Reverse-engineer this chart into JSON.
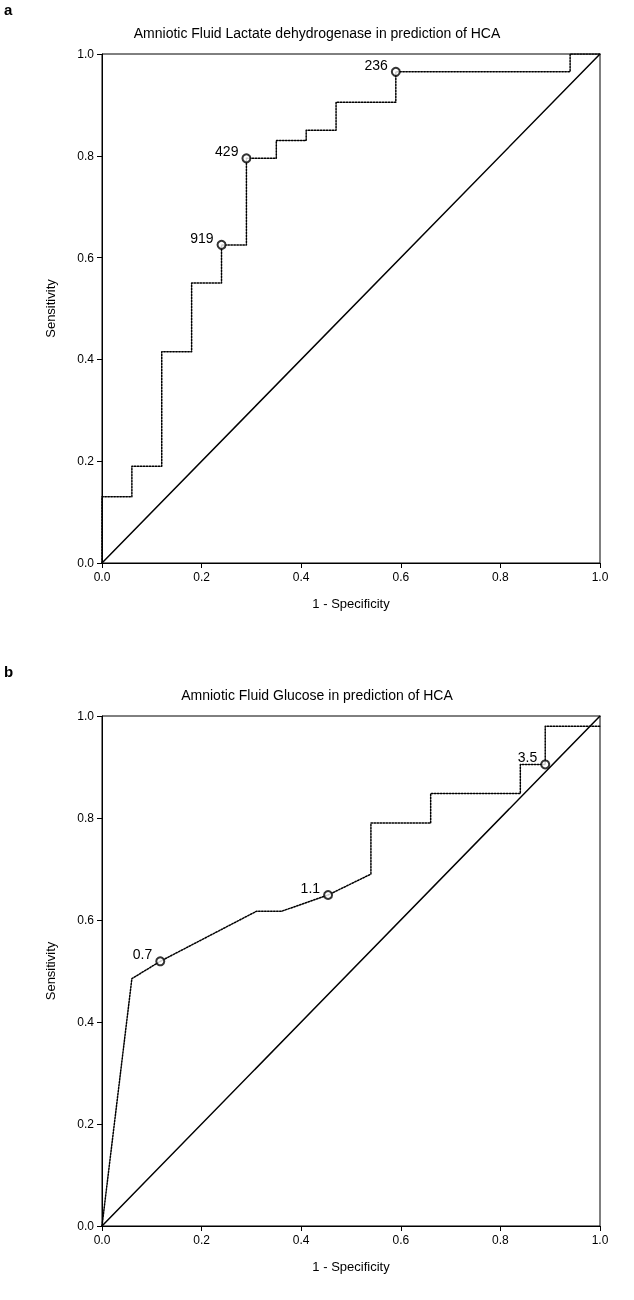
{
  "chart_data": [
    {
      "type": "line",
      "title": "Amniotic Fluid Lactate dehydrogenase in prediction of HCA",
      "xlabel": "1 - Specificity",
      "ylabel": "Sensitivity",
      "series": [
        {
          "type": "line",
          "color": "#000000",
          "line_style": "dotted",
          "marker": "none",
          "x": [
            0,
            0,
            0.06,
            0.06,
            0.12,
            0.12,
            0.18,
            0.18,
            0.24,
            0.24,
            0.29,
            0.29,
            0.35,
            0.35,
            0.41,
            0.41,
            0.47,
            0.47,
            0.59,
            0.59,
            0.94,
            0.94,
            1.0
          ],
          "values": [
            0,
            0.13,
            0.13,
            0.19,
            0.19,
            0.415,
            0.415,
            0.55,
            0.55,
            0.625,
            0.625,
            0.795,
            0.795,
            0.83,
            0.83,
            0.85,
            0.85,
            0.905,
            0.905,
            0.965,
            0.965,
            1.0,
            1.0
          ]
        },
        {
          "type": "line",
          "color": "#000000",
          "line_style": "solid",
          "marker": "none",
          "x": [
            0,
            1
          ],
          "values": [
            0,
            1
          ]
        },
        {
          "type": "scatter",
          "color": "#000000",
          "marker": "circle",
          "x": [
            0.24,
            0.29,
            0.59
          ],
          "values": [
            0.625,
            0.795,
            0.965
          ]
        }
      ],
      "annotations": [
        "a",
        {
          "text": "919",
          "x": 0.24,
          "y": 0.625
        },
        {
          "text": "429",
          "x": 0.29,
          "y": 0.795
        },
        {
          "text": "236",
          "x": 0.59,
          "y": 0.965
        }
      ],
      "xlim": [
        0,
        1
      ],
      "ylim": [
        0,
        1
      ],
      "xticks": [
        {
          "value": 0,
          "label": "0.0"
        },
        {
          "value": 0.2,
          "label": "0.2"
        },
        {
          "value": 0.4,
          "label": "0.4"
        },
        {
          "value": 0.6,
          "label": "0.6"
        },
        {
          "value": 0.8,
          "label": "0.8"
        },
        {
          "value": 1,
          "label": "1.0"
        }
      ],
      "yticks": [
        {
          "value": 0,
          "label": "0.0"
        },
        {
          "value": 0.2,
          "label": "0.2"
        },
        {
          "value": 0.4,
          "label": "0.4"
        },
        {
          "value": 0.6,
          "label": "0.6"
        },
        {
          "value": 0.8,
          "label": "0.8"
        },
        {
          "value": 1,
          "label": "1.0"
        }
      ],
      "grid": false
    },
    {
      "type": "line",
      "title": "Amniotic Fluid Glucose in prediction of HCA",
      "xlabel": "1 - Specificity",
      "ylabel": "Sensitivity",
      "series": [
        {
          "type": "line",
          "color": "#000000",
          "line_style": "dotted",
          "marker": "none",
          "x": [
            0,
            0.06,
            0.117,
            0.31,
            0.36,
            0.454,
            0.54,
            0.54,
            0.66,
            0.66,
            0.84,
            0.84,
            0.89,
            0.89,
            1.0
          ],
          "values": [
            0,
            0.485,
            0.519,
            0.617,
            0.617,
            0.649,
            0.69,
            0.79,
            0.79,
            0.848,
            0.848,
            0.905,
            0.905,
            0.98,
            0.98
          ]
        },
        {
          "type": "line",
          "color": "#000000",
          "line_style": "solid",
          "marker": "none",
          "x": [
            0,
            1
          ],
          "values": [
            0,
            1
          ]
        },
        {
          "type": "scatter",
          "color": "#000000",
          "marker": "circle",
          "x": [
            0.117,
            0.454,
            0.89
          ],
          "values": [
            0.519,
            0.649,
            0.905
          ]
        }
      ],
      "annotations": [
        "b",
        {
          "text": "0.7",
          "x": 0.117,
          "y": 0.519
        },
        {
          "text": "1.1",
          "x": 0.454,
          "y": 0.649
        },
        {
          "text": "3.5",
          "x": 0.89,
          "y": 0.905
        }
      ],
      "xlim": [
        0,
        1
      ],
      "ylim": [
        0,
        1
      ],
      "xticks": [
        {
          "value": 0,
          "label": "0.0"
        },
        {
          "value": 0.2,
          "label": "0.2"
        },
        {
          "value": 0.4,
          "label": "0.4"
        },
        {
          "value": 0.6,
          "label": "0.6"
        },
        {
          "value": 0.8,
          "label": "0.8"
        },
        {
          "value": 1,
          "label": "1.0"
        }
      ],
      "yticks": [
        {
          "value": 0,
          "label": "0.0"
        },
        {
          "value": 0.2,
          "label": "0.2"
        },
        {
          "value": 0.4,
          "label": "0.4"
        },
        {
          "value": 0.6,
          "label": "0.6"
        },
        {
          "value": 0.8,
          "label": "0.8"
        },
        {
          "value": 1,
          "label": "1.0"
        }
      ],
      "grid": false
    }
  ]
}
